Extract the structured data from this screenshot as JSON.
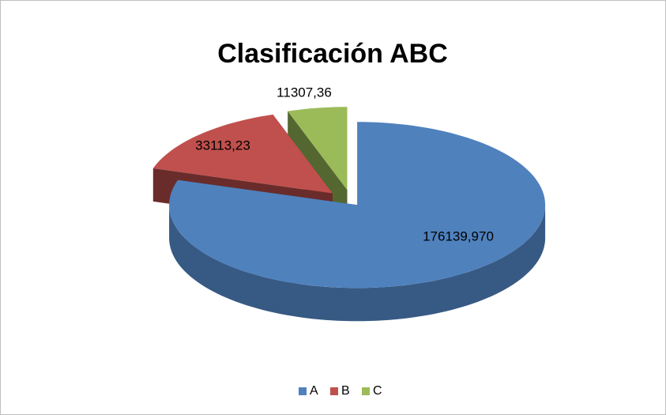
{
  "chart_data": {
    "type": "pie",
    "title": "Clasificación ABC",
    "categories": [
      "A",
      "B",
      "C"
    ],
    "values": [
      176139.97,
      33113.23,
      11307.36
    ],
    "value_labels": [
      "176139,970",
      "33113,23",
      "11307,36"
    ],
    "colors": [
      "#4f81bd",
      "#c0504d",
      "#9bbb59"
    ],
    "legend": "bottom"
  }
}
